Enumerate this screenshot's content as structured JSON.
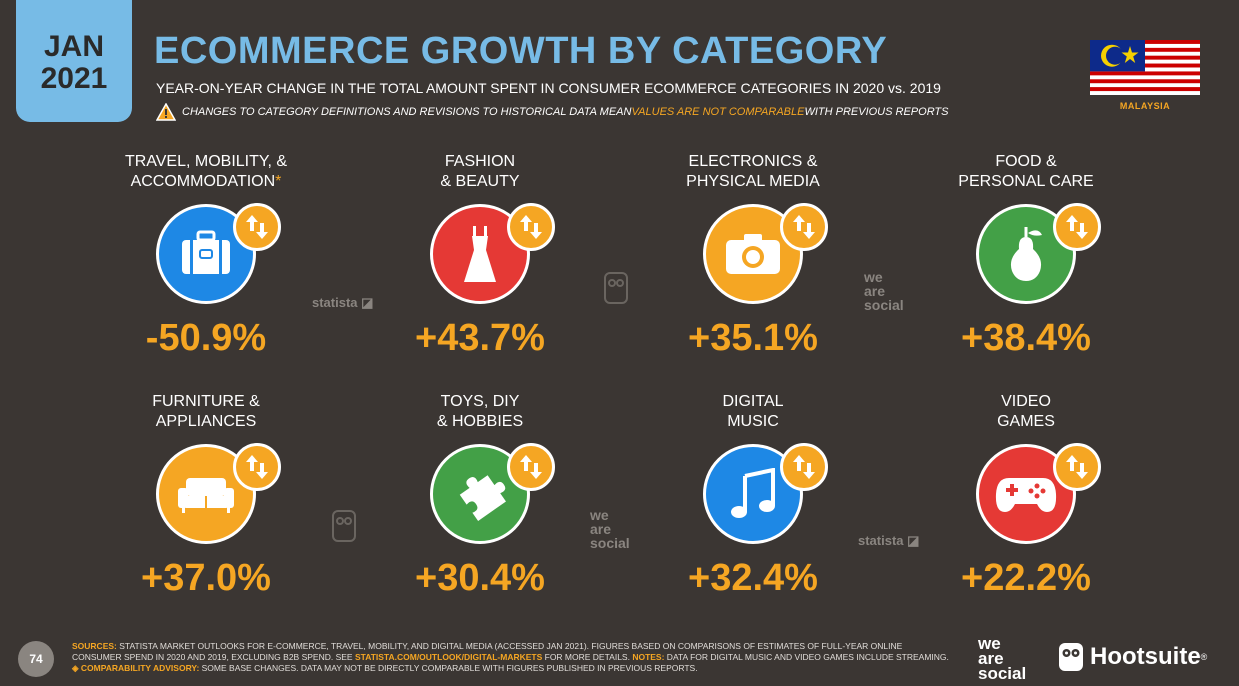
{
  "header": {
    "month": "JAN",
    "year": "2021",
    "title": "ECOMMERCE GROWTH BY CATEGORY",
    "subtitle": "YEAR-ON-YEAR CHANGE IN THE TOTAL AMOUNT SPENT IN CONSUMER ECOMMERCE CATEGORIES IN 2020 vs. 2019",
    "warning_pre": "CHANGES TO CATEGORY DEFINITIONS AND REVISIONS TO HISTORICAL DATA MEAN ",
    "warning_highlight": "VALUES ARE NOT COMPARABLE",
    "warning_post": " WITH PREVIOUS REPORTS",
    "country": "MALAYSIA"
  },
  "categories": [
    {
      "label1": "TRAVEL, MOBILITY, &",
      "label2": "ACCOMMODATION",
      "asterisk": "*",
      "value": "-50.9%",
      "icon": "luggage-icon",
      "color": "#1e88e5"
    },
    {
      "label1": "FASHION",
      "label2": "& BEAUTY",
      "asterisk": "",
      "value": "+43.7%",
      "icon": "dress-icon",
      "color": "#e53935"
    },
    {
      "label1": "ELECTRONICS &",
      "label2": "PHYSICAL MEDIA",
      "asterisk": "",
      "value": "+35.1%",
      "icon": "camera-icon",
      "color": "#f5a623"
    },
    {
      "label1": "FOOD &",
      "label2": "PERSONAL CARE",
      "asterisk": "",
      "value": "+38.4%",
      "icon": "pear-icon",
      "color": "#43a047"
    },
    {
      "label1": "FURNITURE &",
      "label2": "APPLIANCES",
      "asterisk": "",
      "value": "+37.0%",
      "icon": "sofa-icon",
      "color": "#f5a623"
    },
    {
      "label1": "TOYS, DIY",
      "label2": "& HOBBIES",
      "asterisk": "",
      "value": "+30.4%",
      "icon": "puzzle-icon",
      "color": "#43a047"
    },
    {
      "label1": "DIGITAL",
      "label2": "MUSIC",
      "asterisk": "",
      "value": "+32.4%",
      "icon": "music-note-icon",
      "color": "#1e88e5"
    },
    {
      "label1": "VIDEO",
      "label2": "GAMES",
      "asterisk": "",
      "value": "+22.2%",
      "icon": "gamepad-icon",
      "color": "#e53935"
    }
  ],
  "watermarks": {
    "statista": "statista",
    "we": "we",
    "are": "are",
    "social": "social"
  },
  "footer": {
    "page": "74",
    "sources_label": "SOURCES:",
    "sources_text": " STATISTA MARKET OUTLOOKS FOR E-COMMERCE, TRAVEL, MOBILITY, AND DIGITAL MEDIA (ACCESSED JAN 2021). FIGURES BASED ON COMPARISONS OF ESTIMATES OF FULL-YEAR ONLINE CONSUMER SPEND IN 2020 AND 2019, EXCLUDING B2B SPEND. SEE ",
    "link": "STATISTA.COM/OUTLOOK/DIGITAL-MARKETS",
    "mid_text": " FOR MORE DETAILS. ",
    "notes_label": "NOTES:",
    "notes_text": " DATA FOR DIGITAL MUSIC AND VIDEO GAMES INCLUDE STREAMING. ",
    "advisory_label": "◈ COMPARABILITY ADVISORY:",
    "advisory_text": " SOME BASE CHANGES. DATA MAY NOT BE DIRECTLY COMPARABLE WITH FIGURES PUBLISHED IN PREVIOUS REPORTS.",
    "brand_we": "we",
    "brand_are": "are",
    "brand_social": "social",
    "brand_hootsuite": "Hootsuite"
  },
  "colors": {
    "background": "#3b3633",
    "accent": "#f5a623",
    "title": "#77bbe6"
  }
}
